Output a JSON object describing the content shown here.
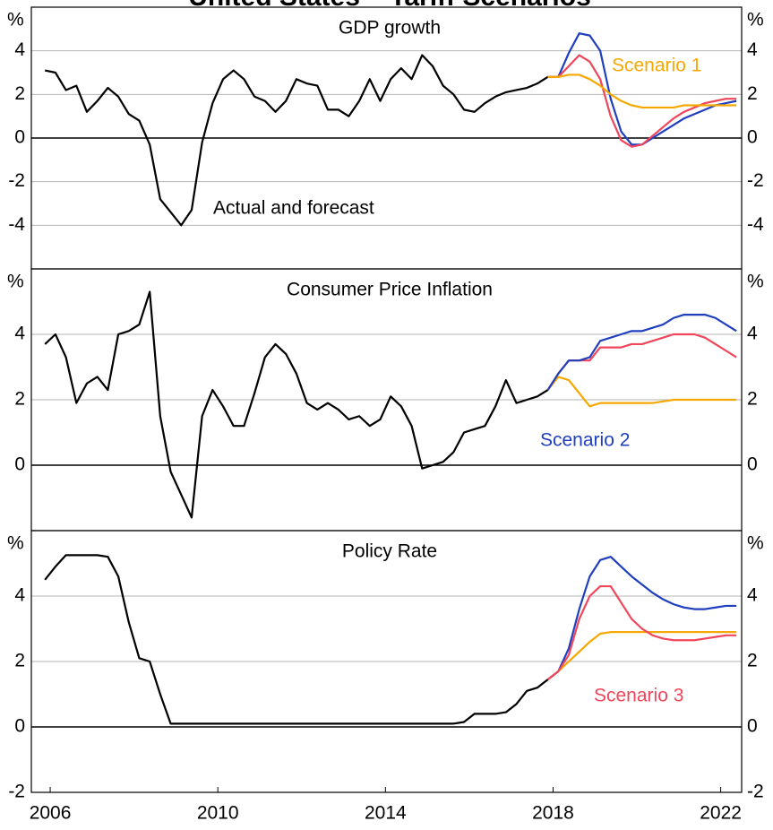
{
  "title": "United States – Tariff Scenarios",
  "chart_data": [
    {
      "type": "line",
      "title": "GDP growth",
      "ylabel": "%",
      "annotation": "Actual and forecast",
      "xlim": [
        2005.55,
        2022.5
      ],
      "ylim": [
        -6,
        6
      ],
      "yticks": [
        -4,
        -2,
        0,
        2,
        4
      ],
      "grid": true,
      "series": [
        {
          "color": "#000000",
          "start": 2005.875,
          "step": 0.25,
          "values": [
            3.1,
            3.0,
            2.2,
            2.4,
            1.2,
            1.7,
            2.3,
            1.9,
            1.1,
            0.8,
            -0.3,
            -2.8,
            -3.4,
            -4.0,
            -3.3,
            -0.2,
            1.6,
            2.7,
            3.1,
            2.7,
            1.9,
            1.7,
            1.2,
            1.7,
            2.7,
            2.5,
            2.4,
            1.3,
            1.3,
            1.0,
            1.7,
            2.7,
            1.7,
            2.7,
            3.2,
            2.7,
            3.8,
            3.3,
            2.4,
            2.0,
            1.3,
            1.2,
            1.6,
            1.9,
            2.1,
            2.2,
            2.3,
            2.5,
            2.8
          ]
        },
        {
          "color": "#1f3fbf",
          "start": 2017.875,
          "step": 0.25,
          "values": [
            2.8,
            2.8,
            3.9,
            4.8,
            4.7,
            4.0,
            1.8,
            0.3,
            -0.3,
            -0.3,
            0.0,
            0.3,
            0.6,
            0.9,
            1.1,
            1.3,
            1.5,
            1.6,
            1.7
          ]
        },
        {
          "color": "#f0455a",
          "start": 2017.875,
          "step": 0.25,
          "values": [
            2.8,
            2.8,
            3.3,
            3.8,
            3.5,
            2.7,
            1.0,
            -0.1,
            -0.4,
            -0.3,
            0.1,
            0.5,
            0.9,
            1.2,
            1.4,
            1.6,
            1.7,
            1.8,
            1.8
          ]
        },
        {
          "name": "Scenario 1",
          "color": "#f5a800",
          "start": 2017.875,
          "step": 0.25,
          "values": [
            2.8,
            2.8,
            2.9,
            2.9,
            2.7,
            2.4,
            2.0,
            1.7,
            1.5,
            1.4,
            1.4,
            1.4,
            1.4,
            1.5,
            1.5,
            1.5,
            1.5,
            1.5,
            1.5
          ]
        }
      ]
    },
    {
      "type": "line",
      "title": "Consumer Price Inflation",
      "ylabel": "%",
      "xlim": [
        2005.55,
        2022.5
      ],
      "ylim": [
        -2,
        6
      ],
      "yticks": [
        0,
        2,
        4
      ],
      "grid": true,
      "series": [
        {
          "color": "#000000",
          "start": 2005.875,
          "step": 0.25,
          "values": [
            3.7,
            4.0,
            3.3,
            1.9,
            2.5,
            2.7,
            2.3,
            4.0,
            4.1,
            4.3,
            5.3,
            1.5,
            -0.2,
            -0.9,
            -1.6,
            1.5,
            2.3,
            1.8,
            1.2,
            1.2,
            2.2,
            3.3,
            3.7,
            3.4,
            2.8,
            1.9,
            1.7,
            1.9,
            1.7,
            1.4,
            1.5,
            1.2,
            1.4,
            2.1,
            1.8,
            1.2,
            -0.1,
            0.0,
            0.1,
            0.4,
            1.0,
            1.1,
            1.2,
            1.8,
            2.6,
            1.9,
            2.0,
            2.1,
            2.3
          ]
        },
        {
          "color": "#f5a800",
          "start": 2017.875,
          "step": 0.25,
          "values": [
            2.3,
            2.7,
            2.6,
            2.2,
            1.8,
            1.9,
            1.9,
            1.9,
            1.9,
            1.9,
            1.9,
            1.95,
            2.0,
            2.0,
            2.0,
            2.0,
            2.0,
            2.0,
            2.0
          ]
        },
        {
          "color": "#f0455a",
          "start": 2017.875,
          "step": 0.25,
          "values": [
            2.3,
            2.8,
            3.2,
            3.2,
            3.2,
            3.6,
            3.6,
            3.6,
            3.7,
            3.7,
            3.8,
            3.9,
            4.0,
            4.0,
            4.0,
            3.9,
            3.7,
            3.5,
            3.3
          ]
        },
        {
          "name": "Scenario 2",
          "color": "#1f3fbf",
          "start": 2017.875,
          "step": 0.25,
          "values": [
            2.3,
            2.8,
            3.2,
            3.2,
            3.3,
            3.8,
            3.9,
            4.0,
            4.1,
            4.1,
            4.2,
            4.3,
            4.5,
            4.6,
            4.6,
            4.6,
            4.5,
            4.3,
            4.1
          ]
        }
      ]
    },
    {
      "type": "line",
      "title": "Policy Rate",
      "ylabel": "%",
      "xlim": [
        2005.55,
        2022.5
      ],
      "xticks": [
        2006,
        2010,
        2014,
        2018,
        2022
      ],
      "ylim": [
        -2,
        6
      ],
      "yticks": [
        -2,
        0,
        2,
        4
      ],
      "grid": true,
      "series": [
        {
          "color": "#000000",
          "start": 2005.875,
          "step": 0.25,
          "values": [
            4.5,
            4.9,
            5.25,
            5.25,
            5.25,
            5.25,
            5.2,
            4.6,
            3.2,
            2.1,
            2.0,
            1.0,
            0.1,
            0.1,
            0.1,
            0.1,
            0.1,
            0.1,
            0.1,
            0.1,
            0.1,
            0.1,
            0.1,
            0.1,
            0.1,
            0.1,
            0.1,
            0.1,
            0.1,
            0.1,
            0.1,
            0.1,
            0.1,
            0.1,
            0.1,
            0.1,
            0.1,
            0.1,
            0.1,
            0.1,
            0.15,
            0.4,
            0.4,
            0.4,
            0.45,
            0.7,
            1.1,
            1.2,
            1.45
          ]
        },
        {
          "color": "#f5a800",
          "start": 2017.875,
          "step": 0.25,
          "values": [
            1.45,
            1.7,
            2.0,
            2.3,
            2.6,
            2.85,
            2.9,
            2.9,
            2.9,
            2.9,
            2.9,
            2.9,
            2.9,
            2.9,
            2.9,
            2.9,
            2.9,
            2.9,
            2.9
          ]
        },
        {
          "color": "#1f3fbf",
          "start": 2017.875,
          "step": 0.25,
          "values": [
            1.45,
            1.7,
            2.4,
            3.6,
            4.6,
            5.1,
            5.2,
            4.9,
            4.6,
            4.35,
            4.1,
            3.9,
            3.75,
            3.65,
            3.6,
            3.6,
            3.65,
            3.7,
            3.7
          ]
        },
        {
          "name": "Scenario 3",
          "color": "#f0455a",
          "start": 2017.875,
          "step": 0.25,
          "values": [
            1.45,
            1.7,
            2.2,
            3.3,
            4.0,
            4.3,
            4.3,
            3.8,
            3.3,
            3.0,
            2.8,
            2.7,
            2.65,
            2.65,
            2.65,
            2.7,
            2.75,
            2.8,
            2.8
          ]
        }
      ]
    }
  ]
}
